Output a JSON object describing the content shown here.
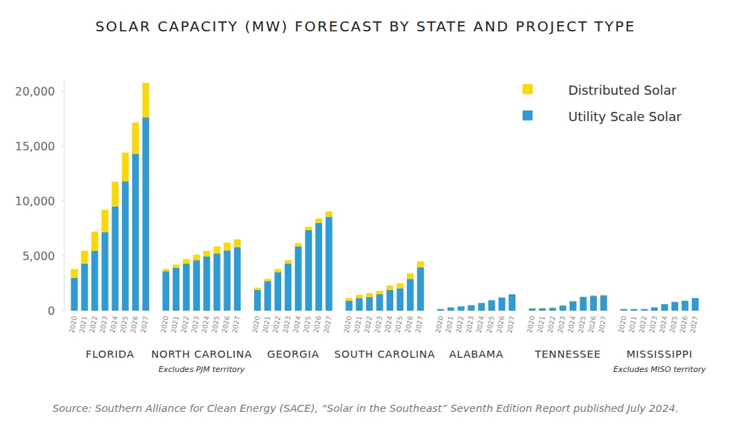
{
  "chart_data": {
    "type": "bar",
    "stacked": true,
    "grid": false,
    "legend": "top-right",
    "title": "SOLAR CAPACITY (MW) FORECAST BY STATE AND PROJECT TYPE",
    "source": "Source: Southern Alliance for Clean Energy (SACE), “Solar in the Southeast” Seventh Edition Report published July 2024.",
    "groups": [
      {
        "label": "FLORIDA"
      },
      {
        "label": "NORTH CAROLINA",
        "note": "Excludes PJM territory"
      },
      {
        "label": "GEORGIA"
      },
      {
        "label": "SOUTH CAROLINA"
      },
      {
        "label": "ALABAMA"
      },
      {
        "label": "TENNESSEE"
      },
      {
        "label": "MISSISSIPPI",
        "note": "Excludes MISO territory"
      }
    ],
    "categories": [
      "2020",
      "2021",
      "2022",
      "2023",
      "2024",
      "2025",
      "2026",
      "2027",
      "2020",
      "2021",
      "2022",
      "2023",
      "2024",
      "2025",
      "2026",
      "2027",
      "2020",
      "2021",
      "2022",
      "2023",
      "2024",
      "2025",
      "2026",
      "2027",
      "2020",
      "2021",
      "2022",
      "2023",
      "2024",
      "2025",
      "2026",
      "2027",
      "2020",
      "2021",
      "2022",
      "2023",
      "2024",
      "2025",
      "2026",
      "2027",
      "2020",
      "2021",
      "2022",
      "2023",
      "2024",
      "2025",
      "2026",
      "2027",
      "2020",
      "2021",
      "2022",
      "2023",
      "2024",
      "2025",
      "2026",
      "2027"
    ],
    "series": [
      {
        "name": "Utility Scale Solar",
        "color": "#2f9bd5",
        "values": [
          3000,
          4300,
          5450,
          7150,
          9500,
          11800,
          14300,
          17600,
          3600,
          3900,
          4300,
          4600,
          4950,
          5200,
          5500,
          5800,
          1900,
          2700,
          3500,
          4300,
          5850,
          7350,
          8000,
          8550,
          900,
          1150,
          1250,
          1500,
          1900,
          2050,
          2900,
          3950,
          150,
          300,
          400,
          500,
          700,
          950,
          1200,
          1500,
          200,
          200,
          250,
          450,
          850,
          1250,
          1350,
          1400,
          150,
          150,
          150,
          300,
          600,
          800,
          900,
          1150
        ]
      },
      {
        "name": "Distributed Solar",
        "color": "#fdd800",
        "values": [
          800,
          1150,
          1750,
          2050,
          2250,
          2600,
          2850,
          3150,
          200,
          300,
          400,
          500,
          500,
          650,
          700,
          700,
          200,
          200,
          300,
          300,
          300,
          300,
          400,
          500,
          250,
          300,
          350,
          300,
          400,
          450,
          500,
          550,
          0,
          0,
          0,
          0,
          0,
          0,
          0,
          0,
          50,
          50,
          50,
          50,
          50,
          50,
          50,
          50,
          0,
          0,
          0,
          0,
          0,
          0,
          0,
          0
        ]
      }
    ],
    "ylim": [
      0,
      21000
    ],
    "yticks": [
      0,
      {
        "value": 5000,
        "label": "5,000"
      },
      {
        "value": 10000,
        "label": "10,000"
      },
      {
        "value": 15000,
        "label": "15,000"
      },
      {
        "value": 20000,
        "label": "20,000"
      }
    ]
  }
}
